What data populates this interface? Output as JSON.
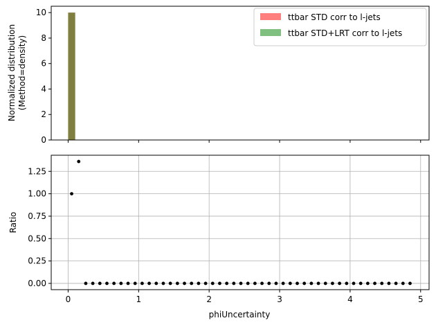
{
  "chart_data": [
    {
      "type": "bar",
      "panel": "top",
      "ylabel_line1": "Normalized distribution",
      "ylabel_line2": "(Method=density)",
      "xlim": [
        -0.24,
        5.12
      ],
      "ylim": [
        0,
        10.5
      ],
      "yticks": [
        0,
        2,
        4,
        6,
        8,
        10
      ],
      "xticks": [
        0,
        1,
        2,
        3,
        4,
        5
      ],
      "grid": false,
      "legend_position": "top-right",
      "bin_width": 0.1,
      "series": [
        {
          "name": "ttbar STD corr to l-jets",
          "color": "#ff0000",
          "alpha": 0.5,
          "bins": [
            {
              "x": 0.0,
              "value": 10.0
            }
          ]
        },
        {
          "name": "ttbar STD+LRT corr to l-jets",
          "color": "#008000",
          "alpha": 0.5,
          "bins": [
            {
              "x": 0.0,
              "value": 10.0
            }
          ]
        }
      ]
    },
    {
      "type": "scatter",
      "panel": "bottom",
      "xlabel": "phiUncertainty",
      "ylabel": "Ratio",
      "xlim": [
        -0.24,
        5.12
      ],
      "ylim": [
        -0.07,
        1.43
      ],
      "xticks": [
        0,
        1,
        2,
        3,
        4,
        5
      ],
      "yticks": [
        0.0,
        0.25,
        0.5,
        0.75,
        1.0,
        1.25
      ],
      "ytick_labels": [
        "0.00",
        "0.25",
        "0.50",
        "0.75",
        "1.00",
        "1.25"
      ],
      "grid": true,
      "marker_color": "#000000",
      "x": [
        0.05,
        0.15,
        0.25,
        0.35,
        0.45,
        0.55,
        0.65,
        0.75,
        0.85,
        0.95,
        1.05,
        1.15,
        1.25,
        1.35,
        1.45,
        1.55,
        1.65,
        1.75,
        1.85,
        1.95,
        2.05,
        2.15,
        2.25,
        2.35,
        2.45,
        2.55,
        2.65,
        2.75,
        2.85,
        2.95,
        3.05,
        3.15,
        3.25,
        3.35,
        3.45,
        3.55,
        3.65,
        3.75,
        3.85,
        3.95,
        4.05,
        4.15,
        4.25,
        4.35,
        4.45,
        4.55,
        4.65,
        4.75,
        4.85
      ],
      "y": [
        1.0,
        1.36,
        0,
        0,
        0,
        0,
        0,
        0,
        0,
        0,
        0,
        0,
        0,
        0,
        0,
        0,
        0,
        0,
        0,
        0,
        0,
        0,
        0,
        0,
        0,
        0,
        0,
        0,
        0,
        0,
        0,
        0,
        0,
        0,
        0,
        0,
        0,
        0,
        0,
        0,
        0,
        0,
        0,
        0,
        0,
        0,
        0,
        0,
        0
      ]
    }
  ]
}
